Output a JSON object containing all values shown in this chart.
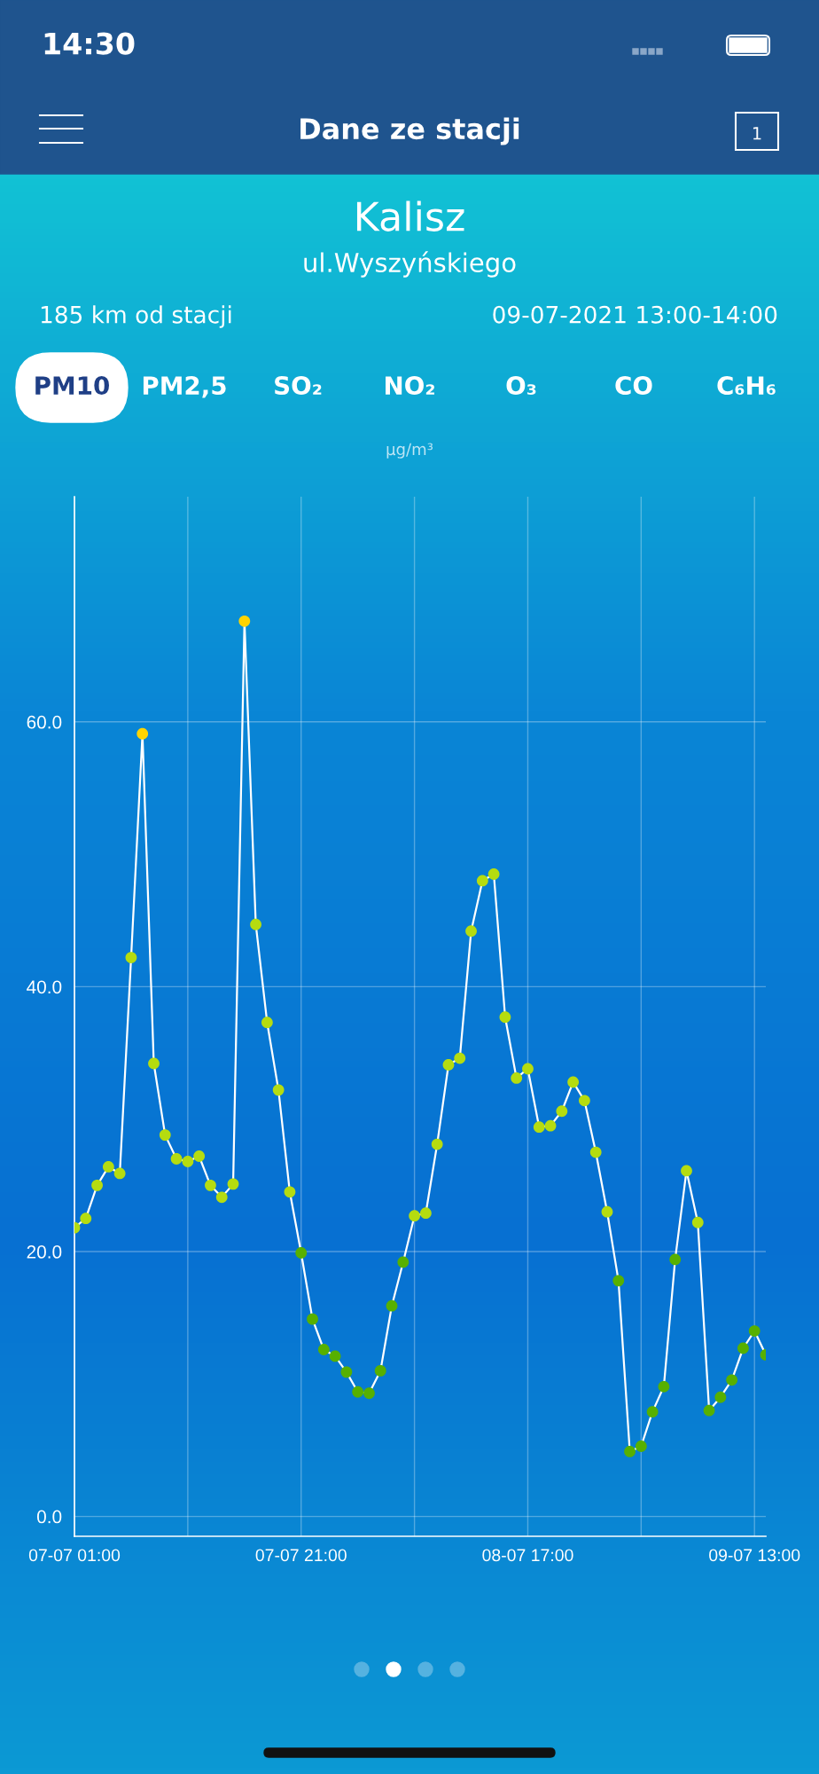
{
  "chart_data": {
    "type": "line",
    "title": "Kalisz",
    "subtitle": "ul.Wyszyńskiego",
    "ylabel": "µg/m³",
    "annotations": [
      "14:30",
      "Dane ze stacji",
      "1",
      "185 km od stacji",
      "09-07-2021 13:00-14:00",
      "PM10",
      "PM2,5",
      "SO₂",
      "NO₂",
      "O₃",
      "CO",
      "C₆H₆"
    ],
    "x": [
      "2021-07-07T01:00",
      "2021-07-07T02:00",
      "2021-07-07T03:00",
      "2021-07-07T04:00",
      "2021-07-07T05:00",
      "2021-07-07T06:00",
      "2021-07-07T07:00",
      "2021-07-07T08:00",
      "2021-07-07T09:00",
      "2021-07-07T10:00",
      "2021-07-07T11:00",
      "2021-07-07T12:00",
      "2021-07-07T13:00",
      "2021-07-07T14:00",
      "2021-07-07T15:00",
      "2021-07-07T16:00",
      "2021-07-07T17:00",
      "2021-07-07T18:00",
      "2021-07-07T19:00",
      "2021-07-07T20:00",
      "2021-07-07T21:00",
      "2021-07-07T22:00",
      "2021-07-07T23:00",
      "2021-07-08T00:00",
      "2021-07-08T01:00",
      "2021-07-08T02:00",
      "2021-07-08T03:00",
      "2021-07-08T04:00",
      "2021-07-08T05:00",
      "2021-07-08T06:00",
      "2021-07-08T07:00",
      "2021-07-08T08:00",
      "2021-07-08T09:00",
      "2021-07-08T10:00",
      "2021-07-08T11:00",
      "2021-07-08T12:00",
      "2021-07-08T13:00",
      "2021-07-08T14:00",
      "2021-07-08T15:00",
      "2021-07-08T16:00",
      "2021-07-08T17:00",
      "2021-07-08T18:00",
      "2021-07-08T19:00",
      "2021-07-08T20:00",
      "2021-07-08T21:00",
      "2021-07-08T22:00",
      "2021-07-08T23:00",
      "2021-07-09T00:00",
      "2021-07-09T01:00",
      "2021-07-09T02:00",
      "2021-07-09T03:00",
      "2021-07-09T04:00",
      "2021-07-09T05:00",
      "2021-07-09T06:00",
      "2021-07-09T07:00",
      "2021-07-09T08:00",
      "2021-07-09T09:00",
      "2021-07-09T10:00",
      "2021-07-09T11:00",
      "2021-07-09T12:00",
      "2021-07-09T13:00",
      "2021-07-09T14:00"
    ],
    "series": [
      {
        "color": "#ffffff",
        "values": [
          21.8,
          22.5,
          25.0,
          26.4,
          25.9,
          42.2,
          59.1,
          34.2,
          28.8,
          27.0,
          26.8,
          27.2,
          25.0,
          24.1,
          25.1,
          67.6,
          44.7,
          37.3,
          32.2,
          24.5,
          19.9,
          14.9,
          12.6,
          12.1,
          10.9,
          9.4,
          9.3,
          11.0,
          15.9,
          19.2,
          22.7,
          22.9,
          28.1,
          34.1,
          34.6,
          44.2,
          48.0,
          48.5,
          37.7,
          33.1,
          33.8,
          29.4,
          29.5,
          30.6,
          32.8,
          31.4,
          27.5,
          23.0,
          17.8,
          4.9,
          5.3,
          7.9,
          9.8,
          19.4,
          26.1,
          22.2,
          8.0,
          9.0,
          10.3,
          12.7,
          14.0,
          12.2
        ],
        "colors": [
          "#b5dc10",
          "#b5dc10",
          "#b5dc10",
          "#b5dc10",
          "#b5dc10",
          "#b5dc10",
          "#ffd400",
          "#b5dc10",
          "#b5dc10",
          "#b5dc10",
          "#b5dc10",
          "#b5dc10",
          "#b5dc10",
          "#b5dc10",
          "#b5dc10",
          "#ffd400",
          "#b5dc10",
          "#b5dc10",
          "#b5dc10",
          "#b5dc10",
          "#57b000",
          "#57b000",
          "#57b000",
          "#57b000",
          "#57b000",
          "#57b000",
          "#57b000",
          "#57b000",
          "#57b000",
          "#57b000",
          "#b5dc10",
          "#b5dc10",
          "#b5dc10",
          "#b5dc10",
          "#b5dc10",
          "#b5dc10",
          "#b5dc10",
          "#b5dc10",
          "#b5dc10",
          "#b5dc10",
          "#b5dc10",
          "#b5dc10",
          "#b5dc10",
          "#b5dc10",
          "#b5dc10",
          "#b5dc10",
          "#b5dc10",
          "#b5dc10",
          "#57b000",
          "#57b000",
          "#57b000",
          "#57b000",
          "#57b000",
          "#57b000",
          "#b5dc10",
          "#b5dc10",
          "#57b000",
          "#57b000",
          "#57b000",
          "#57b000",
          "#57b000",
          "#57b000"
        ]
      }
    ],
    "xlim": [
      "2021-07-07T01:00",
      "2021-07-09T14:00"
    ],
    "xticks": [
      {
        "value": "2021-07-07T01:00",
        "label": "07-07 01:00"
      },
      {
        "value": "2021-07-07T11:00",
        "label": null
      },
      {
        "value": "2021-07-07T21:00",
        "label": "07-07 21:00"
      },
      {
        "value": "2021-07-08T07:00",
        "label": null
      },
      {
        "value": "2021-07-08T17:00",
        "label": "08-07 17:00"
      },
      {
        "value": "2021-07-09T03:00",
        "label": null
      },
      {
        "value": "2021-07-09T13:00",
        "label": "09-07 13:00"
      }
    ],
    "ylim": [
      -1.5,
      77
    ],
    "yticks": [
      {
        "value": 0,
        "label": "0.0"
      },
      {
        "value": 20,
        "label": "20.0"
      },
      {
        "value": 40,
        "label": "40.0"
      },
      {
        "value": 60,
        "label": "60.0"
      }
    ],
    "grid": true,
    "marker": "circle",
    "line_style": "solid"
  }
}
